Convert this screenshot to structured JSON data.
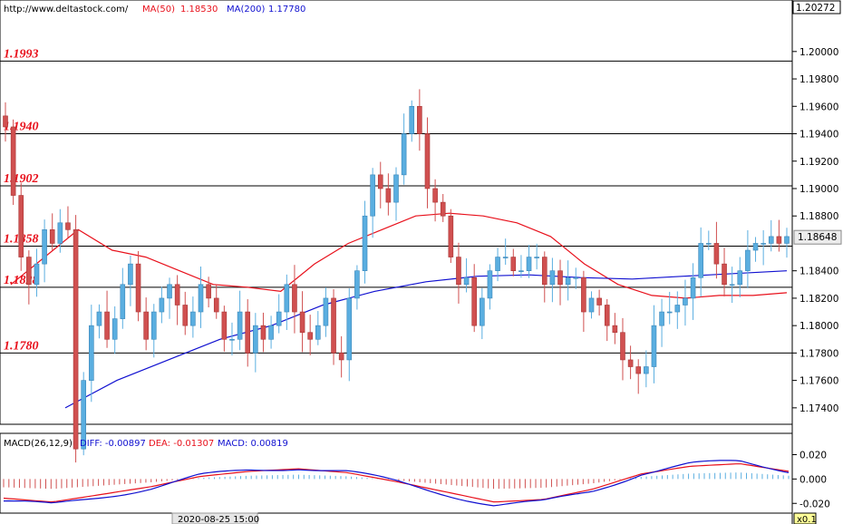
{
  "header": {
    "site": "http://www.deltastock.com/",
    "ma50_label": "MA(50)",
    "ma50_value": "1.18530",
    "ma200_label": "MA(200)",
    "ma200_value": "1.17780"
  },
  "price_axis": {
    "top_label": "1.20272",
    "ticks": [
      "1.20000",
      "1.19800",
      "1.19600",
      "1.19400",
      "1.19200",
      "1.19000",
      "1.18800",
      "1.18400",
      "1.18200",
      "1.18000",
      "1.17800",
      "1.17600",
      "1.17400"
    ],
    "current_label": "1.18648",
    "current_value": 1.18648,
    "ylim": [
      1.1728,
      1.2027
    ]
  },
  "levels": [
    {
      "label": "1.1993",
      "value": 1.1993
    },
    {
      "label": "1.1940",
      "value": 1.194
    },
    {
      "label": "1.1902",
      "value": 1.1902
    },
    {
      "label": "1.1858",
      "value": 1.1858
    },
    {
      "label": "1.1828",
      "value": 1.1828
    },
    {
      "label": "1.1780",
      "value": 1.178
    }
  ],
  "macd": {
    "title": "MACD(26,12,9)",
    "diff_label": "DIFF: -0.00897",
    "dea_label": "DEA: -0.01307",
    "macd_label": "MACD: 0.00819",
    "ticks": [
      "0.020",
      "0.000",
      "-0.020"
    ],
    "ylim": [
      -0.028,
      0.036
    ]
  },
  "footer": {
    "date_label": "2020-08-25 15:00",
    "zoom_label": "x0.1"
  },
  "colors": {
    "bull": "#5aaee0",
    "bear": "#d05050",
    "ma50": "#e8101b",
    "ma200": "#1010d0",
    "level": "#000000",
    "level_text": "#e8101b"
  },
  "chart_data": {
    "type": "candlestick",
    "ohlc_anchors": [
      1.1945,
      1.1895,
      1.185,
      1.183,
      1.1845,
      1.187,
      1.186,
      1.1875,
      1.187,
      1.171,
      1.176,
      1.18,
      1.181,
      1.179,
      1.1805,
      1.183,
      1.1845,
      1.181,
      1.179,
      1.181,
      1.182,
      1.183,
      1.1815,
      1.18,
      1.181,
      1.183,
      1.182,
      1.181,
      1.179,
      1.179,
      1.181,
      1.178,
      1.18,
      1.179,
      1.18,
      1.181,
      1.183,
      1.181,
      1.1795,
      1.179,
      1.18,
      1.182,
      1.178,
      1.1775,
      1.182,
      1.184,
      1.188,
      1.191,
      1.19,
      1.189,
      1.191,
      1.194,
      1.196,
      1.194,
      1.19,
      1.189,
      1.188,
      1.185,
      1.183,
      1.1835,
      1.18,
      1.182,
      1.184,
      1.185,
      1.185,
      1.184,
      1.184,
      1.185,
      1.185,
      1.183,
      1.184,
      1.183,
      1.1835,
      1.1835,
      1.181,
      1.182,
      1.1815,
      1.18,
      1.1795,
      1.1775,
      1.177,
      1.1765,
      1.177,
      1.18,
      1.181,
      1.181,
      1.1815,
      1.182,
      1.1835,
      1.186,
      1.186,
      1.1845,
      1.183,
      1.183,
      1.184,
      1.1855,
      1.186,
      1.186,
      1.1865,
      1.186,
      1.1865
    ],
    "ma50": [
      [
        1.183,
        1.185
      ],
      [
        1.187,
        1.1855
      ],
      [
        1.185,
        1.184
      ],
      [
        1.183,
        1.1828
      ],
      [
        1.1825,
        1.1845
      ],
      [
        1.186,
        1.187
      ],
      [
        1.188,
        1.1882
      ],
      [
        1.188,
        1.1875
      ],
      [
        1.1865,
        1.1845
      ],
      [
        1.183,
        1.1822
      ],
      [
        1.182,
        1.1822
      ],
      [
        1.1822,
        1.1824
      ]
    ],
    "ma200": [
      [
        1.174,
        1.176
      ],
      [
        1.1775,
        1.179
      ],
      [
        1.18,
        1.1815
      ],
      [
        1.1825,
        1.1832
      ],
      [
        1.1836,
        1.1837
      ],
      [
        1.1835,
        1.1834
      ],
      [
        1.1836,
        1.1838
      ],
      [
        1.184
      ]
    ],
    "macd_hist_sample": [
      -0.015,
      -0.018,
      -0.012,
      -0.006,
      0.002,
      0.006,
      0.008,
      0.005,
      -0.002,
      -0.01,
      -0.018,
      -0.016,
      -0.008,
      0.004,
      0.01,
      0.012,
      0.006
    ]
  }
}
